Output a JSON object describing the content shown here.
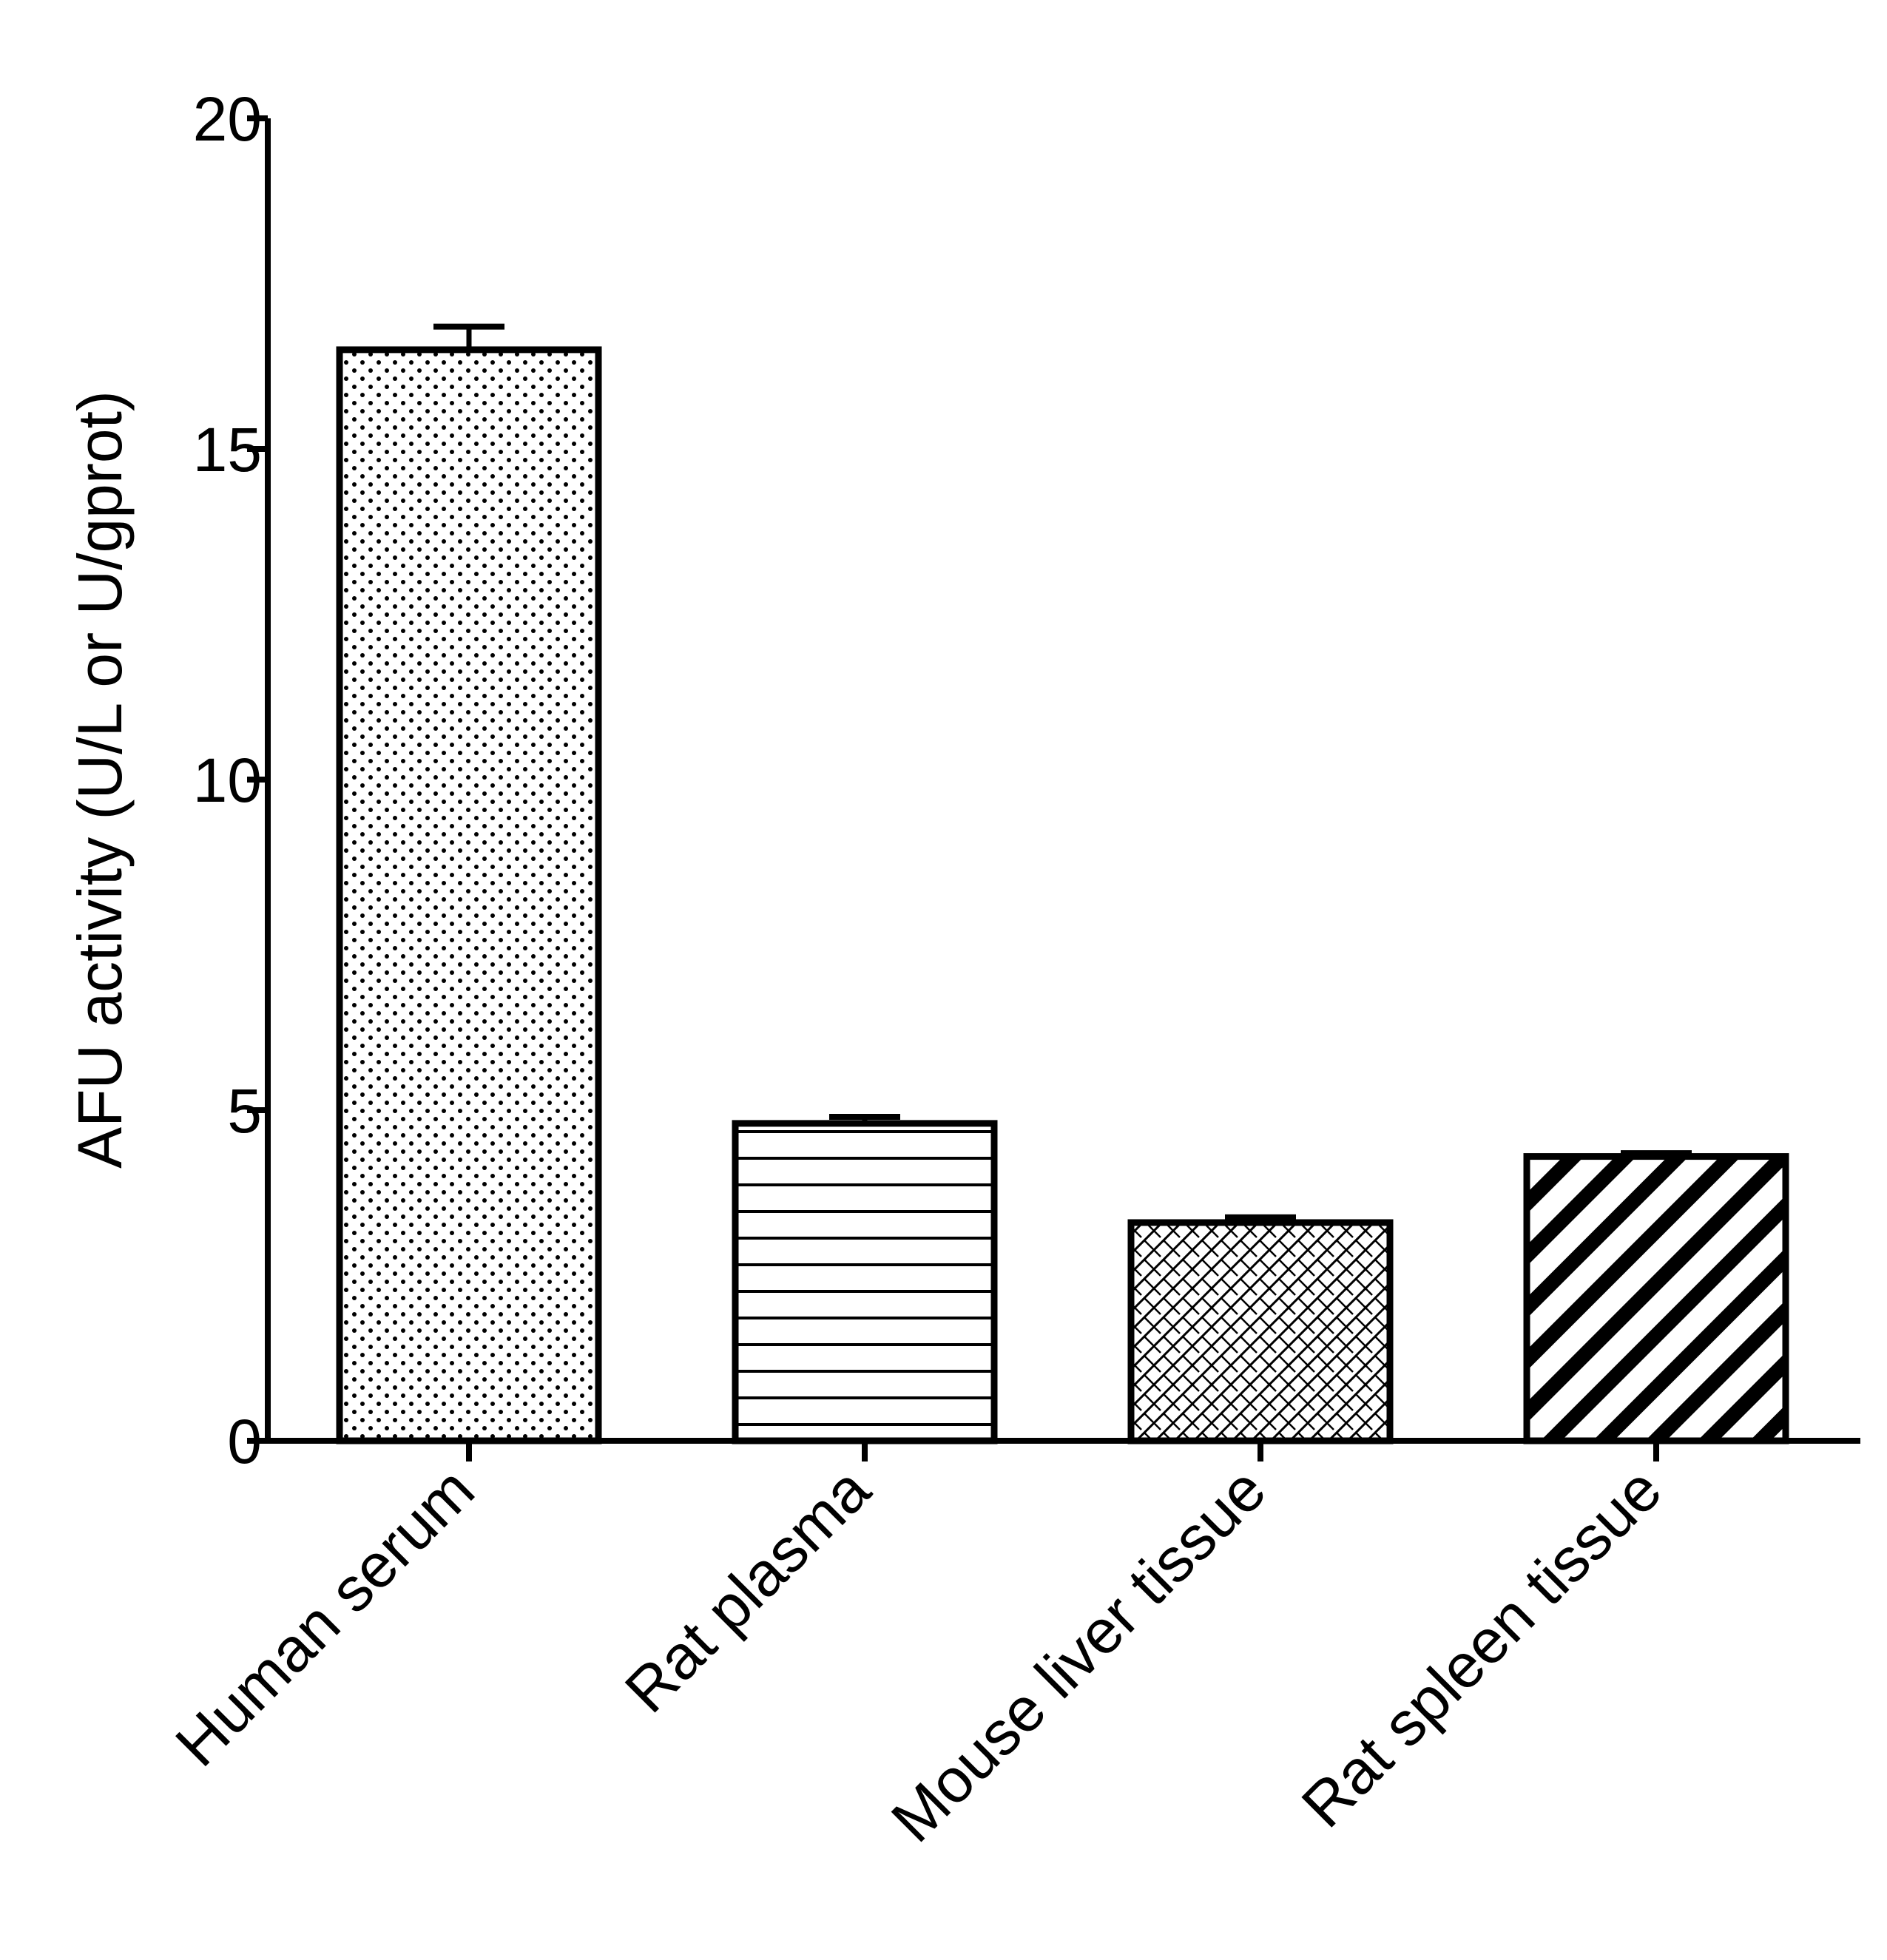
{
  "chart_data": {
    "type": "bar",
    "title": "",
    "xlabel": "",
    "ylabel": "AFU activity (U/L or U/gprot)",
    "categories": [
      "Human serum",
      "Rat plasma",
      "Mouse liver tissue",
      "Rat spleen tissue"
    ],
    "values": [
      16.5,
      4.8,
      3.3,
      4.3
    ],
    "errors": [
      0.35,
      0.1,
      0.08,
      0.05
    ],
    "patterns": [
      "dots",
      "horizontal-lines",
      "crosshatch",
      "diagonal-stripes"
    ],
    "ylim": [
      0,
      20
    ],
    "yticks": [
      0,
      5,
      10,
      15,
      20
    ],
    "grid": false,
    "legend": "none"
  }
}
